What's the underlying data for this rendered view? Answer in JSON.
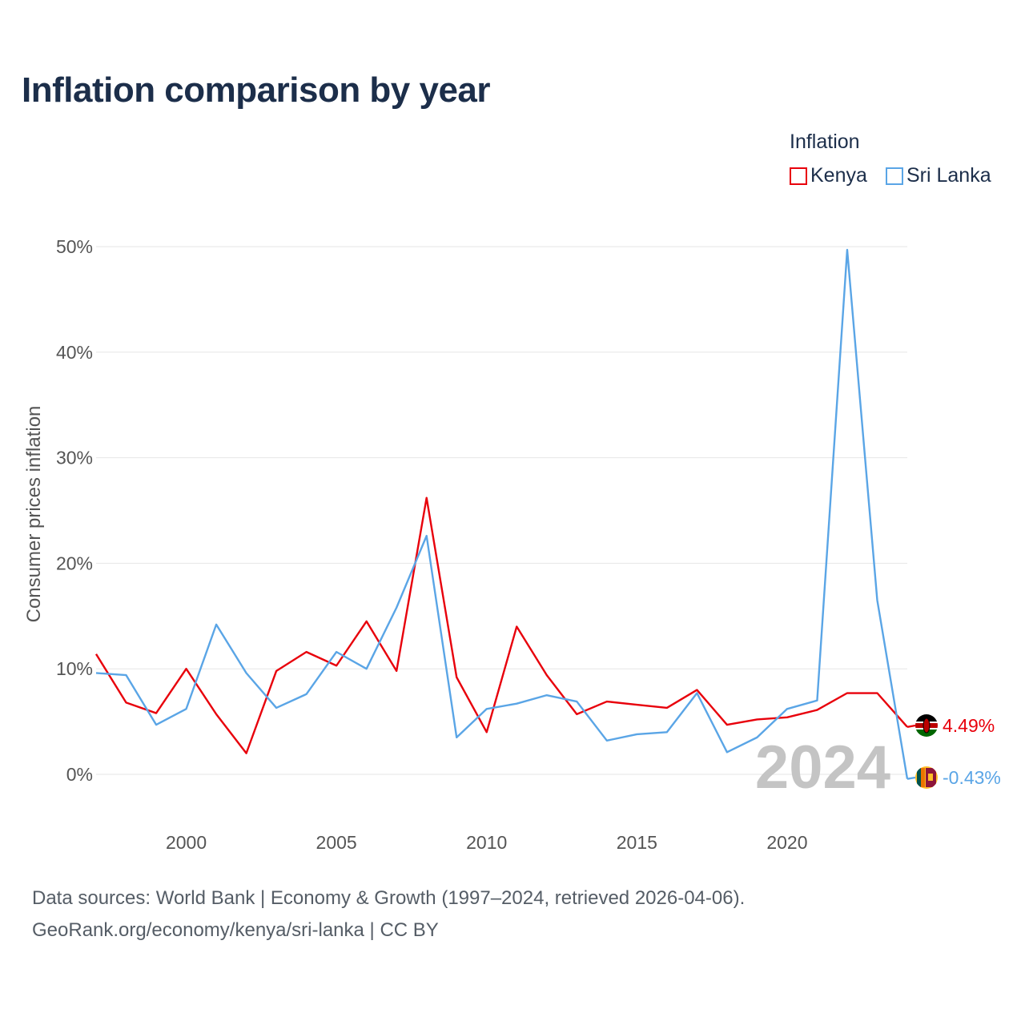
{
  "title": "Inflation comparison by year",
  "legend": {
    "title": "Inflation",
    "items": [
      {
        "label": "Kenya",
        "color": "#e8000b"
      },
      {
        "label": "Sri Lanka",
        "color": "#5aa5e6"
      }
    ]
  },
  "chart_data": {
    "type": "line",
    "title": "Inflation comparison by year",
    "xlabel": "",
    "ylabel": "Consumer prices inflation",
    "x": [
      1997,
      1998,
      1999,
      2000,
      2001,
      2002,
      2003,
      2004,
      2005,
      2006,
      2007,
      2008,
      2009,
      2010,
      2011,
      2012,
      2013,
      2014,
      2015,
      2016,
      2017,
      2018,
      2019,
      2020,
      2021,
      2022,
      2023,
      2024
    ],
    "xlim": [
      1997,
      2024
    ],
    "ylim": [
      0,
      50
    ],
    "x_ticks": [
      2000,
      2005,
      2010,
      2015,
      2020
    ],
    "y_ticks": [
      0,
      10,
      20,
      30,
      40,
      50
    ],
    "y_tick_labels": [
      "0%",
      "10%",
      "20%",
      "30%",
      "40%",
      "50%"
    ],
    "x_tick_labels": [
      "2000",
      "2005",
      "2010",
      "2015",
      "2020"
    ],
    "grid": true,
    "series": [
      {
        "name": "Kenya",
        "color": "#e8000b",
        "values": [
          11.4,
          6.8,
          5.8,
          10.0,
          5.7,
          2.0,
          9.8,
          11.6,
          10.3,
          14.5,
          9.8,
          26.2,
          9.2,
          4.0,
          14.0,
          9.4,
          5.7,
          6.9,
          6.6,
          6.3,
          8.0,
          4.7,
          5.2,
          5.4,
          6.1,
          7.7,
          7.7,
          4.49
        ],
        "end_label": "4.49%"
      },
      {
        "name": "Sri Lanka",
        "color": "#5aa5e6",
        "values": [
          9.6,
          9.4,
          4.7,
          6.2,
          14.2,
          9.6,
          6.3,
          7.6,
          11.6,
          10.0,
          15.8,
          22.6,
          3.5,
          6.2,
          6.7,
          7.5,
          6.9,
          3.2,
          3.8,
          4.0,
          7.7,
          2.1,
          3.5,
          6.2,
          7.0,
          49.7,
          16.5,
          -0.43
        ],
        "end_label": "-0.43%"
      }
    ],
    "year_watermark": "2024"
  },
  "footer": {
    "line1": "Data sources: World Bank | Economy & Growth (1997–2024, retrieved 2026-04-06).",
    "line2": "GeoRank.org/economy/kenya/sri-lanka | CC BY"
  }
}
